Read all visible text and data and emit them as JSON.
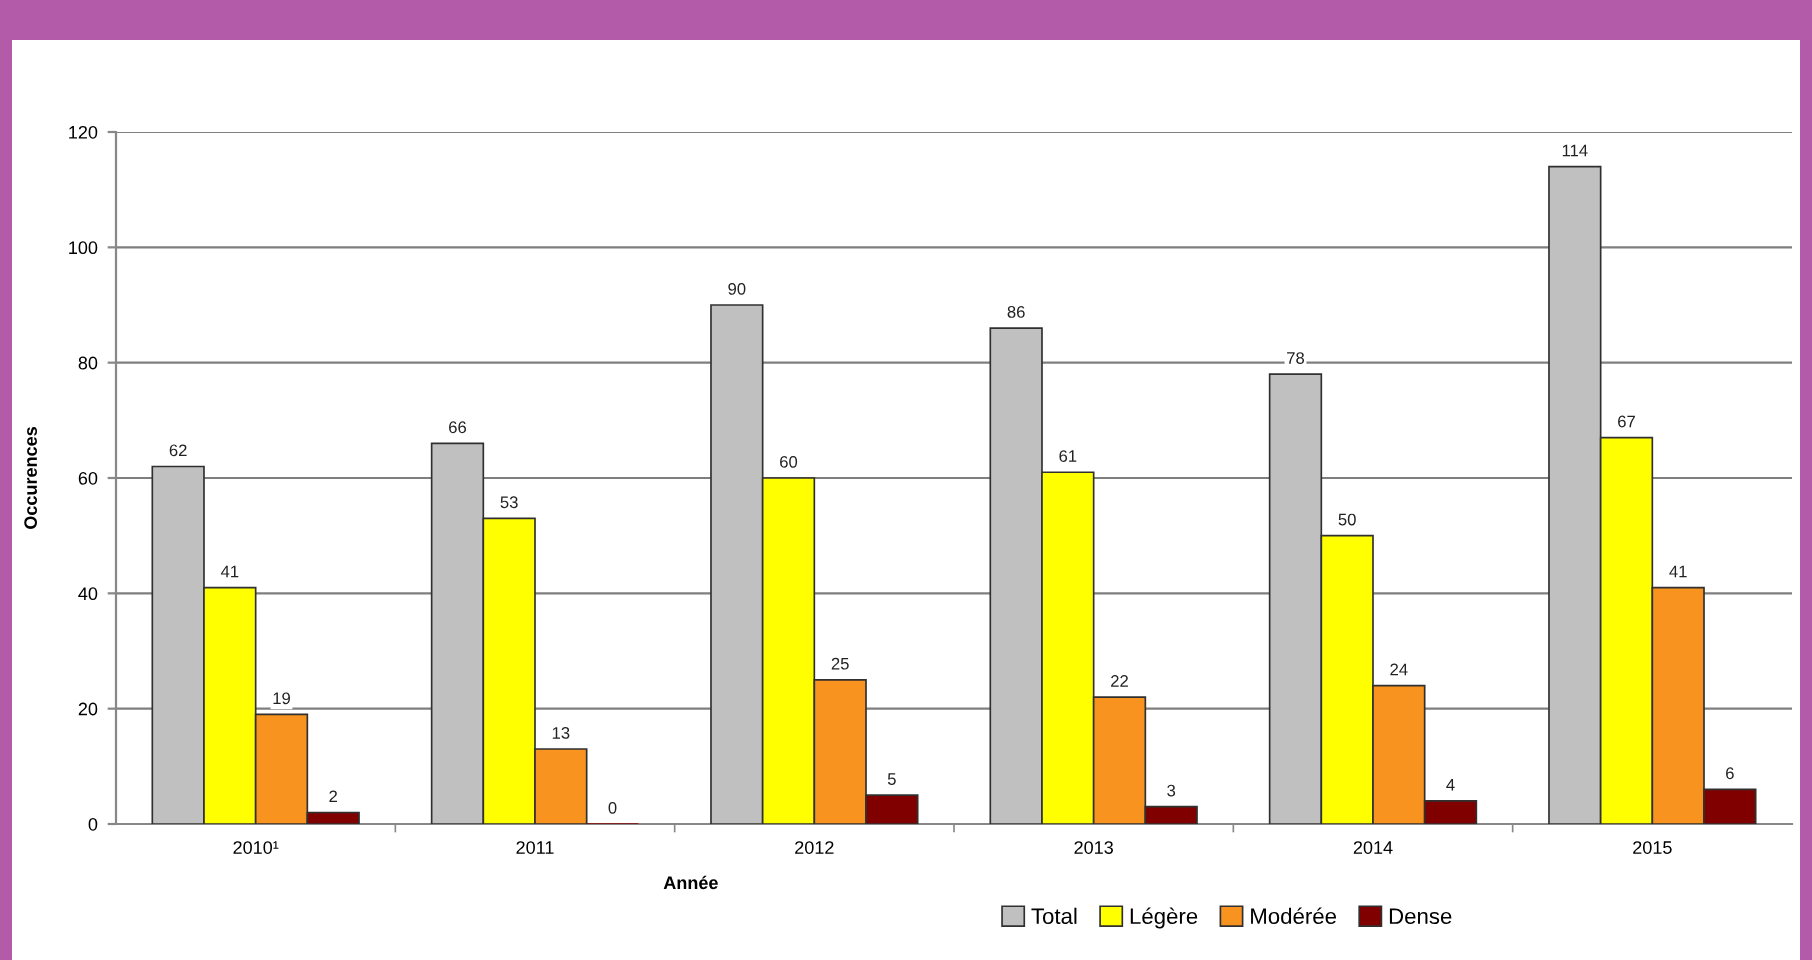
{
  "chart_data": {
    "type": "bar",
    "xlabel": "Année",
    "ylabel": "Occurences",
    "categories": [
      "2010¹",
      "2011",
      "2012",
      "2013",
      "2014",
      "2015"
    ],
    "series": [
      {
        "name": "Total",
        "color": "#c0c0c0",
        "values": [
          62,
          66,
          90,
          86,
          78,
          114
        ]
      },
      {
        "name": "Légère",
        "color": "#ffff00",
        "values": [
          41,
          53,
          60,
          61,
          50,
          67
        ]
      },
      {
        "name": "Modérée",
        "color": "#f7931e",
        "values": [
          19,
          13,
          25,
          22,
          24,
          41
        ]
      },
      {
        "name": "Dense",
        "color": "#800000",
        "values": [
          2,
          0,
          5,
          3,
          4,
          6
        ]
      }
    ],
    "ylim": [
      0,
      120
    ],
    "yticks": [
      0,
      20,
      40,
      60,
      80,
      100,
      120
    ],
    "grid": "y",
    "legend": "bottom",
    "data_labels": true
  }
}
